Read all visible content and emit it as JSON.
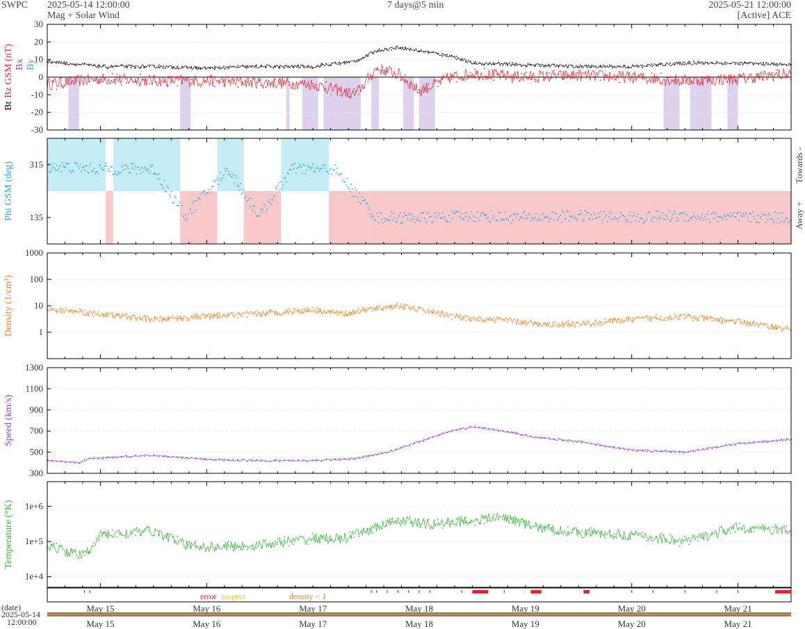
{
  "header": {
    "org": "SWPC",
    "start_time": "2025-05-14 12:00:00",
    "subtitle": "Mag + Solar Wind",
    "span": "7 days@5 min",
    "end_time": "2025-05-21 12:00:00",
    "source": "[Active] ACE"
  },
  "colors": {
    "bt": "#000000",
    "bz": "#e8202a",
    "bx": "#7b3fd0",
    "by": "#1fa6e0",
    "phi": "#1fa6e0",
    "phi_towards_fill": "#c6ecf8",
    "phi_away_fill": "#fac8c8",
    "bz_south_fill": "#ddd2ee",
    "density": "#f07f1e",
    "speed": "#8e3fd8",
    "temperature": "#2db52d",
    "error": "#e8202a",
    "suspect": "#e8c41e",
    "density_lt_1": "#f07f1e"
  },
  "time_axis": {
    "start": "2025-05-14 12:00",
    "end": "2025-05-21 12:00",
    "tick_labels": [
      "May 15",
      "May 16",
      "May 17",
      "May 18",
      "May 19",
      "May 20",
      "May 21"
    ],
    "date_label": "(date)",
    "range_start_date": "2025-05-14",
    "range_start_time": "12:00:00"
  },
  "legend": {
    "error": "error",
    "suspect": "suspect",
    "density_lt_1": "density < 1"
  },
  "chart_data": [
    {
      "type": "line",
      "ylabel_parts": [
        "Bt",
        "Bz GSM (nT)",
        "Bx",
        "By"
      ],
      "ylim": [
        -30,
        30
      ],
      "yticks": [
        30,
        20,
        10,
        0,
        -10,
        -20,
        -30
      ],
      "series": [
        {
          "name": "Bt",
          "x_days": [
            0,
            0.5,
            1,
            1.5,
            2,
            2.5,
            2.9,
            3.1,
            3.3,
            3.5,
            3.8,
            4,
            4.5,
            5,
            5.5,
            6,
            6.5,
            7
          ],
          "values": [
            9,
            6,
            6,
            5,
            6,
            6,
            9,
            15,
            17,
            15,
            12,
            8,
            7,
            6,
            6,
            8,
            8,
            7
          ]
        },
        {
          "name": "Bz",
          "x_days": [
            0,
            0.5,
            1,
            1.5,
            2,
            2.5,
            2.9,
            3.1,
            3.3,
            3.5,
            3.8,
            4,
            4.5,
            5,
            5.5,
            6,
            6.5,
            7
          ],
          "values": [
            -4,
            -1,
            -2,
            -2,
            -3,
            -4,
            -10,
            5,
            2,
            -8,
            0,
            2,
            0,
            1,
            0,
            -2,
            -1,
            2
          ]
        }
      ]
    },
    {
      "type": "scatter",
      "ylabel": "Phi GSM (deg)",
      "yticks": [
        315,
        135
      ],
      "right_labels": [
        "Towards -",
        "Away +"
      ],
      "sectors": [
        {
          "from": 0,
          "to": 0.55,
          "side": "towards"
        },
        {
          "from": 0.55,
          "to": 0.62,
          "side": "away"
        },
        {
          "from": 0.62,
          "to": 1.25,
          "side": "towards"
        },
        {
          "from": 1.25,
          "to": 1.6,
          "side": "away"
        },
        {
          "from": 1.6,
          "to": 1.85,
          "side": "towards"
        },
        {
          "from": 1.85,
          "to": 2.2,
          "side": "away"
        },
        {
          "from": 2.2,
          "to": 2.65,
          "side": "towards"
        },
        {
          "from": 2.65,
          "to": 3.1,
          "side": "away"
        },
        {
          "from": 3.1,
          "to": 7,
          "side": "away"
        }
      ],
      "series": [
        {
          "name": "Phi",
          "x_days": [
            0,
            0.5,
            1,
            1.3,
            1.7,
            2,
            2.3,
            2.7,
            3.1,
            3.5,
            4,
            4.5,
            5,
            5.5,
            6,
            6.5,
            7
          ],
          "values": [
            310,
            300,
            300,
            140,
            300,
            140,
            300,
            300,
            135,
            135,
            140,
            135,
            140,
            135,
            140,
            135,
            135
          ]
        }
      ]
    },
    {
      "type": "line",
      "ylabel": "Density (1/cm³)",
      "yscale": "log",
      "ylim": [
        0.1,
        1000
      ],
      "ytick_labels": [
        "1000",
        "100",
        "10",
        "1"
      ],
      "series": [
        {
          "name": "Density",
          "x_days": [
            0,
            0.3,
            0.7,
            1,
            1.5,
            2,
            2.5,
            2.8,
            3,
            3.3,
            3.6,
            4,
            4.3,
            4.6,
            5,
            5.5,
            6,
            6.5,
            7
          ],
          "values": [
            7,
            6,
            4,
            3,
            4,
            5,
            7,
            5,
            7,
            10,
            6,
            3,
            3,
            2,
            2,
            3,
            4,
            2.5,
            1.3
          ]
        }
      ]
    },
    {
      "type": "line",
      "ylabel": "Speed (km/s)",
      "ylim": [
        300,
        1300
      ],
      "yticks": [
        1300,
        1100,
        900,
        700,
        500,
        300
      ],
      "series": [
        {
          "name": "Speed",
          "x_days": [
            0,
            0.3,
            0.4,
            0.6,
            1,
            1.5,
            2,
            2.5,
            2.9,
            3.2,
            3.5,
            3.8,
            4,
            4.3,
            4.6,
            5,
            5.5,
            6,
            6.5,
            7
          ],
          "values": [
            420,
            400,
            440,
            450,
            470,
            430,
            420,
            420,
            440,
            500,
            600,
            700,
            740,
            700,
            640,
            600,
            520,
            500,
            580,
            620
          ]
        }
      ]
    },
    {
      "type": "line",
      "ylabel": "Temperature (°K)",
      "yscale": "log",
      "ylim": [
        5000,
        5000000
      ],
      "ytick_labels": [
        "1e+6",
        "1e+5",
        "1e+4"
      ],
      "series": [
        {
          "name": "Temperature",
          "x_days": [
            0,
            0.2,
            0.35,
            0.5,
            1,
            1.3,
            1.6,
            2,
            2.5,
            2.8,
            3,
            3.3,
            3.6,
            4,
            4.3,
            4.6,
            5,
            5.5,
            6,
            6.5,
            7
          ],
          "values": [
            80000,
            50000,
            40000,
            150000,
            200000,
            80000,
            70000,
            80000,
            120000,
            120000,
            200000,
            400000,
            300000,
            400000,
            500000,
            250000,
            180000,
            150000,
            100000,
            250000,
            200000
          ]
        }
      ]
    }
  ]
}
